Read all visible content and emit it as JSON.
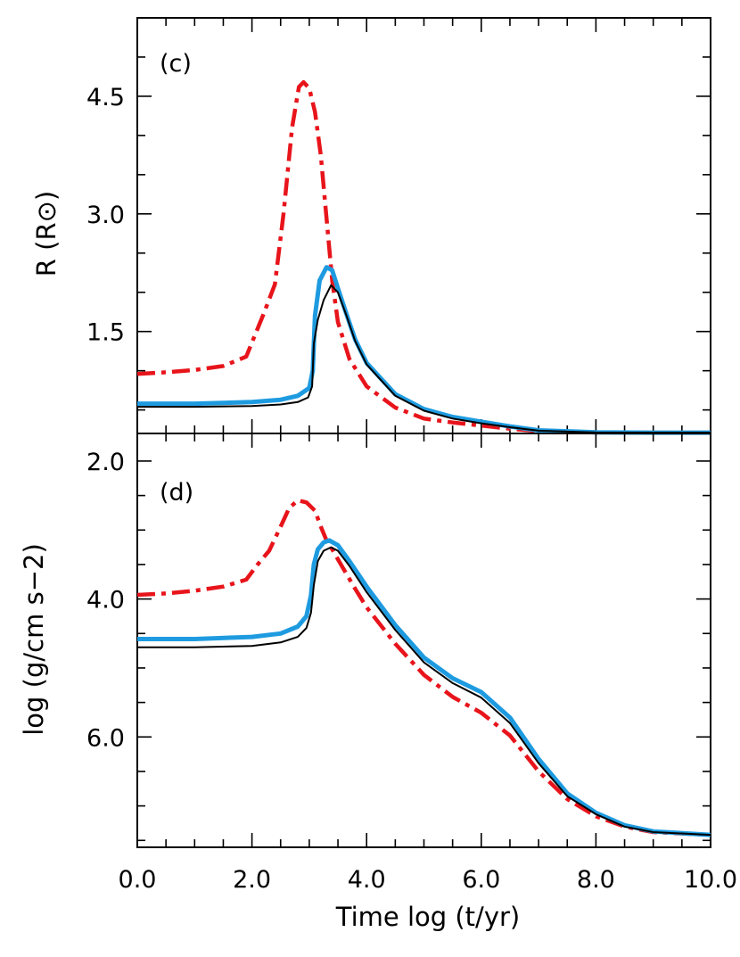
{
  "chart_data": [
    {
      "type": "line",
      "panel_label": "(c)",
      "xlabel": "Time  log (t/yr)",
      "ylabel": "R  (R⊙)",
      "xlim": [
        0,
        10
      ],
      "ylim": [
        0.2,
        5.5
      ],
      "yticks": [
        "4.5",
        "3.0",
        "1.5"
      ],
      "ytick_values": [
        4.5,
        3.0,
        1.5
      ],
      "series": [
        {
          "name": "red-dashdot",
          "color": "#e8141b",
          "style": "dashdot",
          "x": [
            0,
            0.5,
            1.0,
            1.5,
            1.9,
            2.05,
            2.2,
            2.4,
            2.55,
            2.7,
            2.82,
            2.9,
            3.0,
            3.1,
            3.2,
            3.3,
            3.4,
            3.5,
            3.7,
            4.0,
            4.5,
            5.0,
            5.5,
            6.0,
            6.5,
            7.0,
            8.0,
            9.0,
            10.0
          ],
          "y": [
            0.96,
            0.98,
            1.01,
            1.06,
            1.18,
            1.45,
            1.72,
            2.1,
            3.0,
            4.1,
            4.62,
            4.68,
            4.6,
            4.3,
            3.75,
            2.95,
            2.15,
            1.62,
            1.15,
            0.8,
            0.53,
            0.39,
            0.34,
            0.3,
            0.26,
            0.23,
            0.215,
            0.21,
            0.21
          ]
        },
        {
          "name": "blue-thick",
          "color": "#1e9be0",
          "style": "solid-thick",
          "x": [
            0,
            1.0,
            2.0,
            2.5,
            2.8,
            3.0,
            3.06,
            3.1,
            3.18,
            3.3,
            3.4,
            3.5,
            3.65,
            3.8,
            4.0,
            4.5,
            5.0,
            5.5,
            6.0,
            6.5,
            7.0,
            8.0,
            9.0,
            10.0
          ],
          "y": [
            0.58,
            0.58,
            0.6,
            0.63,
            0.68,
            0.78,
            1.0,
            1.7,
            2.15,
            2.32,
            2.28,
            2.05,
            1.72,
            1.4,
            1.1,
            0.7,
            0.51,
            0.41,
            0.35,
            0.29,
            0.24,
            0.215,
            0.21,
            0.21
          ]
        },
        {
          "name": "black-thin",
          "color": "#000000",
          "style": "solid-thin",
          "x": [
            0,
            1.0,
            2.0,
            2.5,
            2.8,
            2.98,
            3.05,
            3.08,
            3.15,
            3.25,
            3.38,
            3.5,
            3.65,
            3.8,
            4.0,
            4.5,
            5.0,
            5.5,
            6.0,
            6.5,
            7.0,
            8.0,
            9.0,
            10.0
          ],
          "y": [
            0.54,
            0.54,
            0.55,
            0.57,
            0.6,
            0.66,
            0.8,
            1.35,
            1.65,
            1.9,
            2.09,
            2.0,
            1.7,
            1.38,
            1.08,
            0.68,
            0.49,
            0.39,
            0.33,
            0.28,
            0.235,
            0.212,
            0.21,
            0.21
          ]
        }
      ]
    },
    {
      "type": "line",
      "panel_label": "(d)",
      "xlabel": "Time  log (t/yr)",
      "ylabel": "log (g/cm s−2)",
      "xlim": [
        0,
        10
      ],
      "ylim": [
        7.6,
        1.6
      ],
      "y_inverted": true,
      "yticks": [
        "2.0",
        "4.0",
        "6.0"
      ],
      "ytick_values": [
        2.0,
        4.0,
        6.0
      ],
      "xticks": [
        "0.0",
        "2.0",
        "4.0",
        "6.0",
        "8.0",
        "10.0"
      ],
      "xtick_values": [
        0,
        2,
        4,
        6,
        8,
        10
      ],
      "series": [
        {
          "name": "red-dashdot",
          "color": "#e8141b",
          "style": "dashdot",
          "x": [
            0,
            0.5,
            1.0,
            1.5,
            1.9,
            2.1,
            2.3,
            2.5,
            2.65,
            2.8,
            2.95,
            3.1,
            3.2,
            3.3,
            3.4,
            3.6,
            3.8,
            4.0,
            4.5,
            5.0,
            5.5,
            6.0,
            6.5,
            7.0,
            7.5,
            8.0,
            8.5,
            9.0,
            10.0
          ],
          "y": [
            3.94,
            3.92,
            3.88,
            3.82,
            3.72,
            3.5,
            3.3,
            2.95,
            2.68,
            2.57,
            2.6,
            2.72,
            2.95,
            3.15,
            3.28,
            3.57,
            3.85,
            4.12,
            4.65,
            5.1,
            5.42,
            5.65,
            5.98,
            6.5,
            6.9,
            7.15,
            7.3,
            7.38,
            7.42
          ]
        },
        {
          "name": "blue-thick",
          "color": "#1e9be0",
          "style": "solid-thick",
          "x": [
            0,
            1.0,
            2.0,
            2.5,
            2.8,
            2.95,
            3.03,
            3.08,
            3.15,
            3.25,
            3.35,
            3.5,
            3.7,
            4.0,
            4.5,
            5.0,
            5.5,
            6.0,
            6.5,
            7.0,
            7.5,
            8.0,
            8.5,
            9.0,
            10.0
          ],
          "y": [
            4.58,
            4.58,
            4.55,
            4.5,
            4.4,
            4.25,
            3.95,
            3.5,
            3.28,
            3.18,
            3.15,
            3.22,
            3.45,
            3.82,
            4.38,
            4.85,
            5.15,
            5.35,
            5.72,
            6.32,
            6.82,
            7.1,
            7.28,
            7.37,
            7.42
          ]
        },
        {
          "name": "black-thin",
          "color": "#000000",
          "style": "solid-thin",
          "x": [
            0,
            1.0,
            2.0,
            2.5,
            2.8,
            2.95,
            3.03,
            3.08,
            3.15,
            3.25,
            3.38,
            3.5,
            3.7,
            4.0,
            4.5,
            5.0,
            5.5,
            6.0,
            6.5,
            7.0,
            7.5,
            8.0,
            8.5,
            9.0,
            10.0
          ],
          "y": [
            4.7,
            4.7,
            4.68,
            4.63,
            4.55,
            4.42,
            4.2,
            3.8,
            3.45,
            3.3,
            3.25,
            3.3,
            3.52,
            3.9,
            4.45,
            4.92,
            5.22,
            5.43,
            5.8,
            6.38,
            6.86,
            7.12,
            7.3,
            7.38,
            7.42
          ]
        }
      ]
    }
  ]
}
